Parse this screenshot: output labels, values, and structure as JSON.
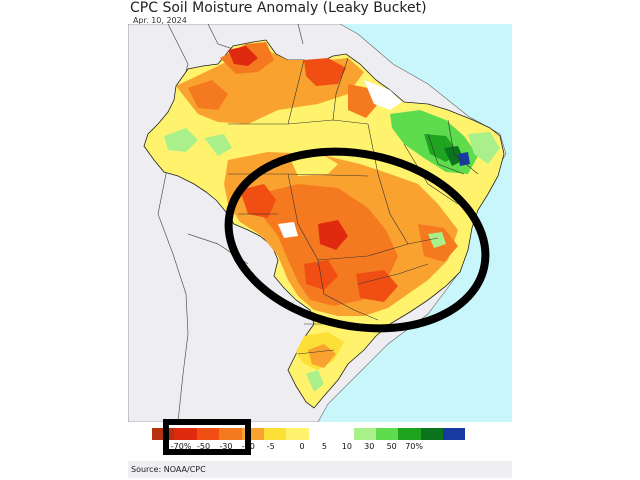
{
  "title": "CPC Soil Moisture Anomaly (Leaky Bucket)",
  "date": "Apr. 10, 2024",
  "source": "Source: NOAA/CPC",
  "colors": {
    "ocean": "#c9f6fb",
    "land": "#eeedf1",
    "border": "#333333",
    "highlight": "#000000"
  },
  "legend": {
    "swatch_colors": [
      "#b5310f",
      "#e02a10",
      "#f04e12",
      "#f57a1f",
      "#f9a230",
      "#fde037",
      "#fff36e",
      "#ffffff",
      "#ffffff",
      "#aaf08a",
      "#5edc4e",
      "#1ea41e",
      "#0c741c",
      "#173aa0"
    ],
    "tick_labels": [
      "-70%",
      "-50",
      "-30",
      "-10",
      "-5",
      "0",
      "5",
      "10",
      "30",
      "50",
      "70%"
    ]
  }
}
